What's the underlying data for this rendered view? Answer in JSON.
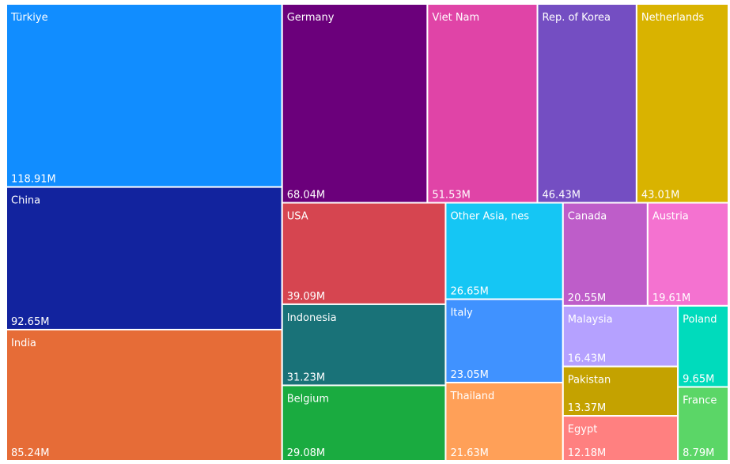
{
  "chart_data": {
    "type": "treemap",
    "categories": [
      "Türkiye",
      "China",
      "India",
      "Germany",
      "Viet Nam",
      "Rep. of Korea",
      "Netherlands",
      "USA",
      "Indonesia",
      "Belgium",
      "Other Asia, nes",
      "Italy",
      "Thailand",
      "Canada",
      "Austria",
      "Malaysia",
      "Pakistan",
      "Egypt",
      "Poland",
      "France"
    ],
    "values": [
      118.91,
      92.65,
      85.24,
      68.04,
      51.53,
      46.43,
      43.01,
      39.09,
      31.23,
      29.08,
      26.65,
      23.05,
      21.63,
      20.55,
      19.61,
      16.43,
      13.37,
      12.18,
      9.65,
      8.79
    ],
    "value_labels": [
      "118.91M",
      "92.65M",
      "85.24M",
      "68.04M",
      "51.53M",
      "46.43M",
      "43.01M",
      "39.09M",
      "31.23M",
      "29.08M",
      "26.65M",
      "23.05M",
      "21.63M",
      "20.55M",
      "19.61M",
      "16.43M",
      "13.37M",
      "12.18M",
      "9.65M",
      "8.79M"
    ],
    "colors": [
      "#118DFF",
      "#12239E",
      "#E66C37",
      "#6B007B",
      "#E044A7",
      "#744EC2",
      "#D9B300",
      "#D64550",
      "#197278",
      "#1AAB40",
      "#15C6F4",
      "#4092FF",
      "#FFA058",
      "#BE5DC9",
      "#F472D0",
      "#B5A1FF",
      "#C4A200",
      "#FF8080",
      "#00DBBC",
      "#5BD667"
    ]
  }
}
